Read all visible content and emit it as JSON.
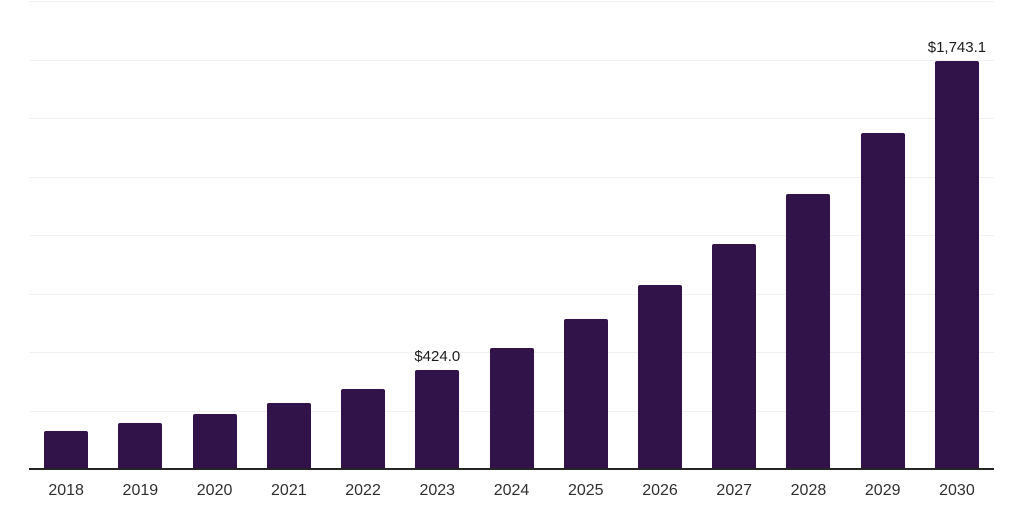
{
  "chart_data": {
    "type": "bar",
    "title": "",
    "xlabel": "",
    "ylabel": "",
    "categories": [
      "2018",
      "2019",
      "2020",
      "2021",
      "2022",
      "2023",
      "2024",
      "2025",
      "2026",
      "2027",
      "2028",
      "2029",
      "2030"
    ],
    "values": [
      164,
      195,
      234,
      281,
      342,
      424.0,
      517,
      641,
      787,
      963,
      1176,
      1438,
      1743.1
    ],
    "data_labels": [
      "",
      "",
      "",
      "",
      "",
      "$424.0",
      "",
      "",
      "",
      "",
      "",
      "",
      "$1,743.1"
    ],
    "ylim": [
      0,
      2000
    ],
    "grid_step": 250,
    "grid": "horizontal-only",
    "legend_position": "none",
    "y_axis_tick_labels_visible": false,
    "bar_color": "#321349",
    "gridline_color": "#f1f1f3",
    "axis_line_color": "#242424",
    "tick_label_color": "#303030",
    "value_label_color": "#1c1c1c"
  }
}
